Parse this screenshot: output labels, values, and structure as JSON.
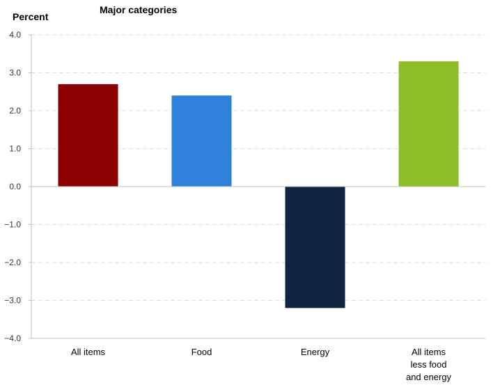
{
  "chart_data": {
    "type": "bar",
    "title": "Major categories",
    "ylabel": "Percent",
    "xlabel": "",
    "ylim": [
      -4.0,
      4.0
    ],
    "yticks": [
      "4.0",
      "3.0",
      "2.0",
      "1.0",
      "0.0",
      "−1.0",
      "−2.0",
      "−3.0",
      "−4.0"
    ],
    "ytick_values": [
      4.0,
      3.0,
      2.0,
      1.0,
      0.0,
      -1.0,
      -2.0,
      -3.0,
      -4.0
    ],
    "grid": true,
    "categories": [
      [
        "All items"
      ],
      [
        "Food"
      ],
      [
        "Energy"
      ],
      [
        "All items",
        "less food",
        "and energy"
      ]
    ],
    "values": [
      2.7,
      2.4,
      -3.2,
      3.3
    ],
    "colors": [
      "#8b0000",
      "#2e80d8",
      "#0f243e",
      "#8dbe25"
    ]
  }
}
